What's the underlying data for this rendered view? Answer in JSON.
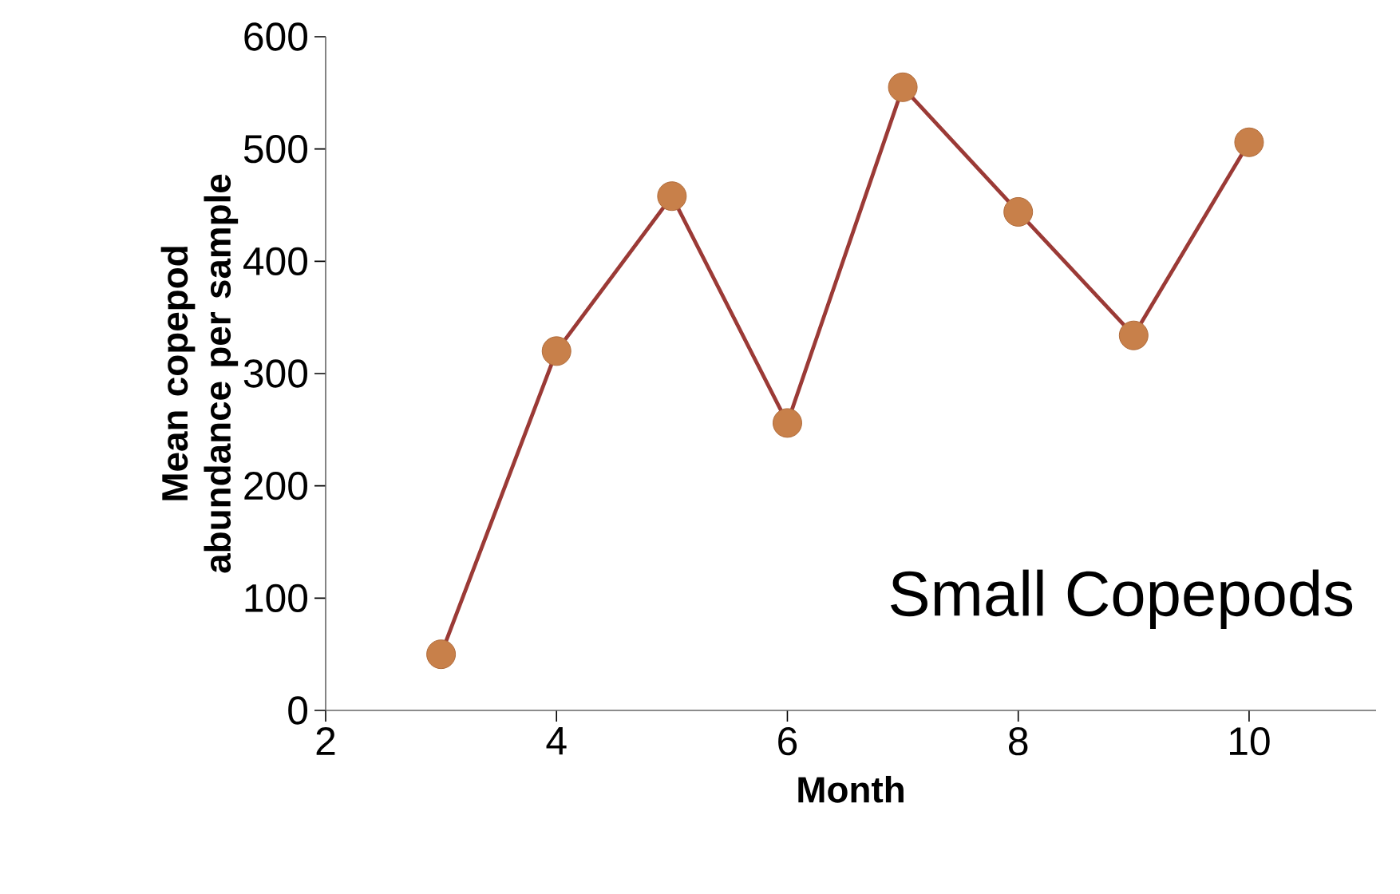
{
  "chart_data": {
    "type": "line",
    "xlabel": "Month",
    "ylabel": "Mean copepod abundance per sample",
    "annotations": [
      "Small Copepods"
    ],
    "x": [
      3,
      4,
      5,
      6,
      7,
      8,
      9,
      10
    ],
    "series": [
      {
        "color": "#9b3a36",
        "values": [
          50,
          320,
          458,
          256,
          555,
          444,
          334,
          506
        ]
      }
    ],
    "marker": "circle",
    "line_style": "solid",
    "xlim": [
      2,
      11.1
    ],
    "xticks": [
      2,
      4,
      6,
      8,
      10
    ],
    "ylim": [
      0,
      600
    ],
    "yticks": [
      0,
      100,
      200,
      300,
      400,
      500,
      600
    ]
  }
}
